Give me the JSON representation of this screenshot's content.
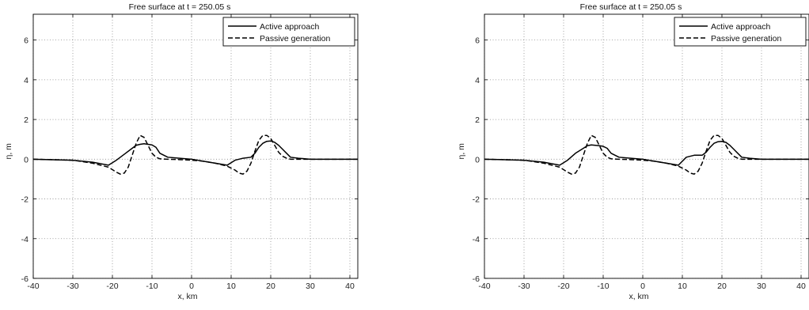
{
  "chart_data": [
    {
      "type": "line",
      "title": "Free surface at t = 250.05 s",
      "xlabel": "x, km",
      "ylabel": "η, m",
      "xlim": [
        -40,
        42
      ],
      "ylim": [
        -6,
        7.3
      ],
      "xticks": [
        -40,
        -30,
        -20,
        -10,
        0,
        10,
        20,
        30,
        40
      ],
      "yticks": [
        -6,
        -4,
        -2,
        0,
        2,
        4,
        6
      ],
      "grid": true,
      "legend_position": "top-right",
      "series": [
        {
          "name": "Active approach",
          "style": "solid",
          "color": "#000000",
          "x": [
            -40,
            -30,
            -25,
            -21,
            -19,
            -17,
            -15,
            -14,
            -13,
            -12,
            -11,
            -10,
            -9,
            -8,
            -6,
            -3,
            0,
            3,
            6,
            9,
            11,
            13,
            15,
            16,
            17,
            18,
            19,
            20,
            21,
            22,
            23,
            24,
            25,
            27,
            30,
            35,
            42
          ],
          "y": [
            0,
            -0.05,
            -0.15,
            -0.3,
            -0.05,
            0.25,
            0.55,
            0.7,
            0.75,
            0.78,
            0.75,
            0.72,
            0.6,
            0.3,
            0.1,
            0.05,
            0,
            -0.1,
            -0.2,
            -0.3,
            -0.05,
            0.05,
            0.1,
            0.3,
            0.6,
            0.8,
            0.9,
            0.92,
            0.85,
            0.7,
            0.5,
            0.3,
            0.1,
            0.05,
            0,
            0,
            0
          ]
        },
        {
          "name": "Passive generation",
          "style": "dashed",
          "color": "#000000",
          "x": [
            -40,
            -30,
            -25,
            -21,
            -19,
            -18,
            -17,
            -16,
            -15,
            -14,
            -13,
            -12,
            -11,
            -10,
            -9,
            -8,
            -6,
            -3,
            0,
            3,
            6,
            9,
            11,
            12,
            13,
            14,
            15,
            16,
            17,
            18,
            19,
            20,
            21,
            22,
            23,
            24,
            25,
            27,
            30,
            35,
            42
          ],
          "y": [
            0,
            -0.05,
            -0.2,
            -0.4,
            -0.65,
            -0.75,
            -0.7,
            -0.4,
            0.2,
            0.8,
            1.2,
            1.1,
            0.7,
            0.3,
            0.1,
            0.02,
            0,
            -0.02,
            -0.05,
            -0.1,
            -0.2,
            -0.35,
            -0.55,
            -0.7,
            -0.75,
            -0.6,
            -0.2,
            0.4,
            0.95,
            1.2,
            1.2,
            1.05,
            0.7,
            0.35,
            0.15,
            0.05,
            0,
            0,
            0,
            0,
            0
          ]
        }
      ]
    },
    {
      "type": "line",
      "title": "Free surface at t = 250.05 s",
      "xlabel": "x, km",
      "ylabel": "η, m",
      "xlim": [
        -40,
        42
      ],
      "ylim": [
        -6,
        7.3
      ],
      "xticks": [
        -40,
        -30,
        -20,
        -10,
        0,
        10,
        20,
        30,
        40
      ],
      "yticks": [
        -6,
        -4,
        -2,
        0,
        2,
        4,
        6
      ],
      "grid": true,
      "legend_position": "top-right",
      "series": [
        {
          "name": "Active approach",
          "style": "solid",
          "color": "#000000",
          "x": [
            -40,
            -30,
            -25,
            -21,
            -19,
            -17,
            -15,
            -14,
            -13,
            -12,
            -11,
            -10,
            -9,
            -8,
            -6,
            -3,
            0,
            3,
            6,
            9,
            11,
            13,
            15,
            16,
            17,
            18,
            19,
            20,
            21,
            22,
            23,
            24,
            25,
            27,
            30,
            35,
            42
          ],
          "y": [
            0,
            -0.05,
            -0.15,
            -0.3,
            -0.05,
            0.3,
            0.55,
            0.68,
            0.72,
            0.7,
            0.68,
            0.65,
            0.55,
            0.3,
            0.1,
            0.05,
            0,
            -0.1,
            -0.2,
            -0.3,
            0.1,
            0.2,
            0.2,
            0.35,
            0.6,
            0.8,
            0.88,
            0.9,
            0.85,
            0.7,
            0.5,
            0.3,
            0.1,
            0.05,
            0,
            0,
            0
          ]
        },
        {
          "name": "Passive generation",
          "style": "dashed",
          "color": "#000000",
          "x": [
            -40,
            -30,
            -25,
            -21,
            -19,
            -18,
            -17,
            -16,
            -15,
            -14,
            -13,
            -12,
            -11,
            -10,
            -9,
            -8,
            -6,
            -3,
            0,
            3,
            6,
            9,
            11,
            12,
            13,
            14,
            15,
            16,
            17,
            18,
            19,
            20,
            21,
            22,
            23,
            24,
            25,
            27,
            30,
            35,
            42
          ],
          "y": [
            0,
            -0.05,
            -0.2,
            -0.4,
            -0.65,
            -0.75,
            -0.7,
            -0.4,
            0.2,
            0.8,
            1.2,
            1.1,
            0.7,
            0.3,
            0.1,
            0.02,
            0,
            -0.02,
            -0.05,
            -0.1,
            -0.2,
            -0.35,
            -0.55,
            -0.7,
            -0.75,
            -0.6,
            -0.2,
            0.4,
            0.95,
            1.2,
            1.2,
            1.05,
            0.7,
            0.35,
            0.15,
            0.05,
            0,
            0,
            0,
            0,
            0
          ]
        }
      ]
    }
  ]
}
